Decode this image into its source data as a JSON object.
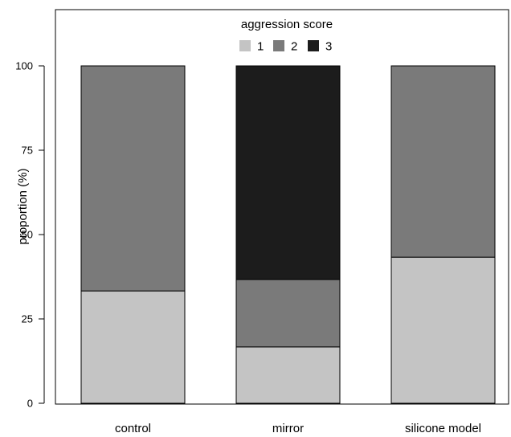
{
  "chart_data": {
    "type": "bar",
    "stacked": true,
    "categories": [
      "control",
      "mirror",
      "silicone model"
    ],
    "ylabel": "proportion (%)",
    "xlabel": "",
    "ylim": [
      0,
      115
    ],
    "yticks": [
      0,
      25,
      50,
      75,
      100
    ],
    "legend": {
      "title": "aggression score",
      "placement": "top-center",
      "orientation": "horizontal"
    },
    "series": [
      {
        "name": "1",
        "color": "#c4c4c4",
        "values": [
          33.3,
          16.7,
          43.3
        ]
      },
      {
        "name": "2",
        "color": "#7a7a7a",
        "values": [
          66.7,
          20.0,
          56.7
        ]
      },
      {
        "name": "3",
        "color": "#1c1c1c",
        "values": [
          0,
          63.3,
          0
        ]
      }
    ]
  }
}
